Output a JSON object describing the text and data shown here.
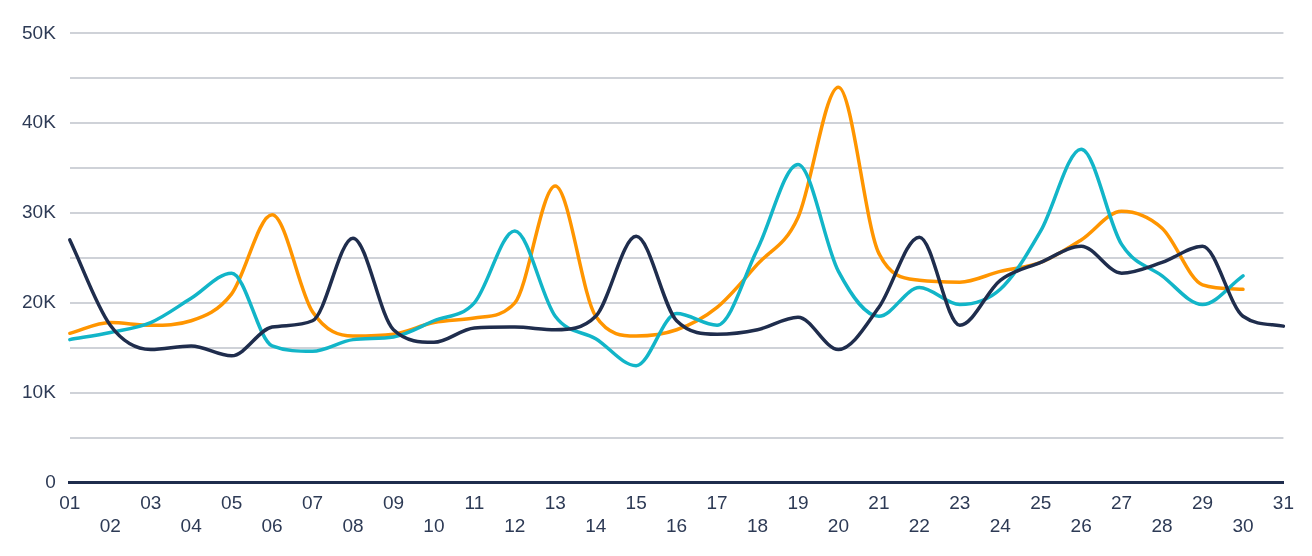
{
  "chart_data": {
    "type": "line",
    "categories": [
      "01",
      "02",
      "03",
      "04",
      "05",
      "06",
      "07",
      "08",
      "09",
      "10",
      "11",
      "12",
      "13",
      "14",
      "15",
      "16",
      "17",
      "18",
      "19",
      "20",
      "21",
      "22",
      "23",
      "24",
      "25",
      "26",
      "27",
      "28",
      "29",
      "30",
      "31"
    ],
    "series": [
      {
        "color": "#1f2d4d",
        "values": [
          27000,
          17500,
          14800,
          15200,
          14100,
          17300,
          18000,
          27200,
          17000,
          15600,
          17200,
          17300,
          17000,
          18500,
          27400,
          18000,
          16500,
          17000,
          18400,
          14800,
          19500,
          27300,
          17500,
          22500,
          24500,
          26300,
          23300,
          24500,
          26300,
          18500,
          17400
        ]
      },
      {
        "color": "#12b5c8",
        "values": [
          15900,
          16700,
          17800,
          20500,
          23300,
          15200,
          14600,
          15900,
          16200,
          18000,
          20000,
          28000,
          18500,
          16000,
          13000,
          18800,
          17500,
          26000,
          35400,
          23500,
          18500,
          21700,
          19800,
          21500,
          28000,
          37100,
          26500,
          23000,
          19800,
          23000,
          null
        ]
      },
      {
        "color": "#ff9500",
        "values": [
          16600,
          17800,
          17500,
          18000,
          21000,
          29800,
          19000,
          16300,
          16500,
          17800,
          18300,
          20000,
          33000,
          18500,
          16300,
          17000,
          19500,
          24300,
          29500,
          44000,
          25500,
          22500,
          22300,
          23500,
          24500,
          27000,
          30200,
          28300,
          22000,
          21500,
          null
        ]
      }
    ],
    "ylim": [
      0,
      50000
    ],
    "yticks": [
      0,
      {
        "value": 5000,
        "label": null
      },
      {
        "value": 10000,
        "label": "10K"
      },
      {
        "value": 15000,
        "label": null
      },
      {
        "value": 20000,
        "label": "20K"
      },
      {
        "value": 25000,
        "label": null
      },
      {
        "value": 30000,
        "label": "30K"
      },
      {
        "value": 35000,
        "label": null
      },
      {
        "value": 40000,
        "label": "40K"
      },
      {
        "value": 45000,
        "label": null
      },
      {
        "value": 50000,
        "label": "50K"
      }
    ],
    "grid": "y",
    "legend": false,
    "marker": "none",
    "line_style": "solid"
  }
}
